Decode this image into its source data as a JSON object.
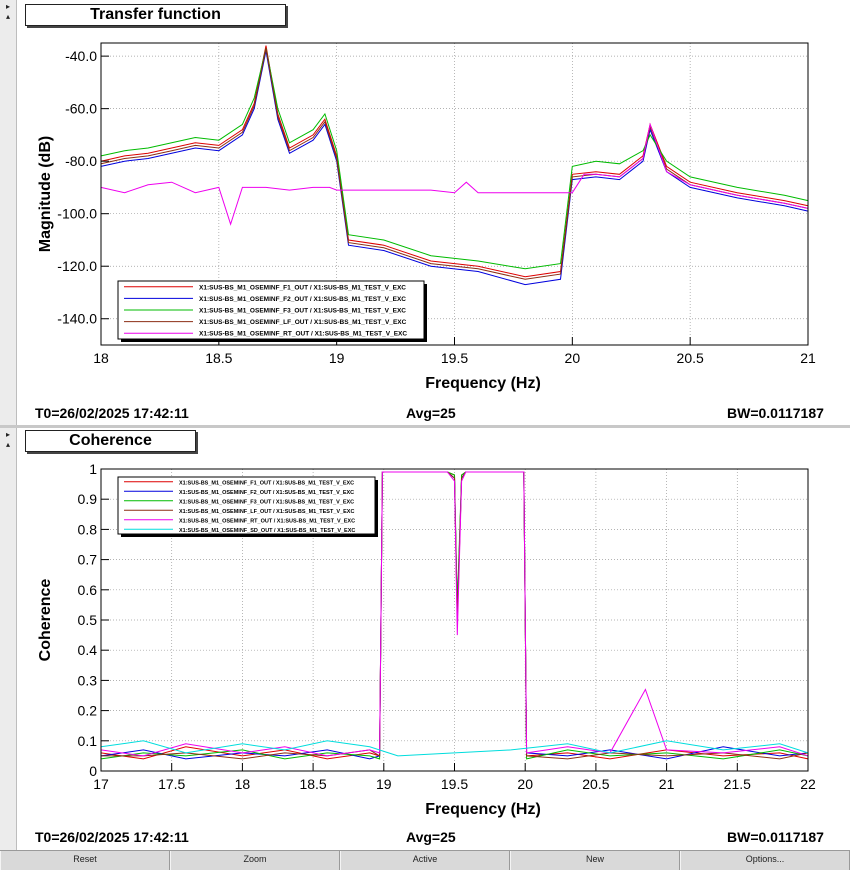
{
  "panes": [
    {
      "title": "Transfer function",
      "footer": {
        "t0": "T0=26/02/2025 17:42:11",
        "avg": "Avg=25",
        "bw": "BW=0.0117187"
      }
    },
    {
      "title": "Coherence",
      "footer": {
        "t0": "T0=26/02/2025 17:42:11",
        "avg": "Avg=25",
        "bw": "BW=0.0117187"
      }
    }
  ],
  "toolbar": {
    "reset": "Reset",
    "zoom": "Zoom",
    "active": "Active",
    "new": "New",
    "options": "Options..."
  },
  "chart_data": [
    {
      "type": "line",
      "xlabel": "Frequency (Hz)",
      "ylabel": "Magnitude (dB)",
      "xlim": [
        18,
        21
      ],
      "ylim": [
        -150,
        -35
      ],
      "xticks": [
        18,
        18.5,
        19,
        19.5,
        20,
        20.5,
        21
      ],
      "yticks": [
        -140,
        -120,
        -100,
        -80,
        -60,
        -40
      ],
      "grid": true,
      "legend_position": "bottom-left",
      "series": [
        {
          "name": "X1:SUS-BS_M1_OSEMINF_F1_OUT / X1:SUS-BS_M1_TEST_V_EXC",
          "color": "#dd0000",
          "x": [
            18,
            18.1,
            18.2,
            18.3,
            18.4,
            18.5,
            18.6,
            18.65,
            18.7,
            18.75,
            18.8,
            18.9,
            18.95,
            19.0,
            19.05,
            19.2,
            19.4,
            19.6,
            19.8,
            19.95,
            20.0,
            20.1,
            20.2,
            20.3,
            20.33,
            20.4,
            20.5,
            20.7,
            20.9,
            21.0
          ],
          "y": [
            -80,
            -78,
            -77,
            -75,
            -73,
            -74,
            -68,
            -58,
            -36,
            -62,
            -75,
            -70,
            -64,
            -78,
            -110,
            -112,
            -118,
            -120,
            -124,
            -122,
            -85,
            -84,
            -85,
            -78,
            -66,
            -82,
            -88,
            -92,
            -95,
            -97
          ]
        },
        {
          "name": "X1:SUS-BS_M1_OSEMINF_F2_OUT / X1:SUS-BS_M1_TEST_V_EXC",
          "color": "#0000dd",
          "x": [
            18,
            18.1,
            18.2,
            18.3,
            18.4,
            18.5,
            18.6,
            18.65,
            18.7,
            18.75,
            18.8,
            18.9,
            18.95,
            19.0,
            19.05,
            19.2,
            19.4,
            19.6,
            19.8,
            19.95,
            20.0,
            20.1,
            20.2,
            20.3,
            20.33,
            20.4,
            20.5,
            20.7,
            20.9,
            21.0
          ],
          "y": [
            -82,
            -80,
            -79,
            -77,
            -75,
            -76,
            -70,
            -60,
            -38,
            -64,
            -77,
            -72,
            -66,
            -80,
            -112,
            -114,
            -120,
            -122,
            -127,
            -125,
            -87,
            -86,
            -87,
            -80,
            -68,
            -84,
            -90,
            -94,
            -97,
            -99
          ]
        },
        {
          "name": "X1:SUS-BS_M1_OSEMINF_F3_OUT / X1:SUS-BS_M1_TEST_V_EXC",
          "color": "#00bb00",
          "x": [
            18,
            18.1,
            18.2,
            18.3,
            18.4,
            18.5,
            18.6,
            18.65,
            18.7,
            18.75,
            18.8,
            18.9,
            18.95,
            19.0,
            19.05,
            19.2,
            19.4,
            19.6,
            19.8,
            19.95,
            20.0,
            20.1,
            20.2,
            20.3,
            20.33,
            20.4,
            20.5,
            20.7,
            20.9,
            21.0
          ],
          "y": [
            -78,
            -76,
            -75,
            -73,
            -71,
            -72,
            -66,
            -56,
            -37,
            -60,
            -73,
            -68,
            -62,
            -76,
            -108,
            -110,
            -116,
            -118,
            -121,
            -119,
            -82,
            -80,
            -81,
            -76,
            -70,
            -80,
            -86,
            -90,
            -93,
            -95
          ]
        },
        {
          "name": "X1:SUS-BS_M1_OSEMINF_LF_OUT / X1:SUS-BS_M1_TEST_V_EXC",
          "color": "#8b2e14",
          "x": [
            18,
            18.1,
            18.2,
            18.3,
            18.4,
            18.5,
            18.6,
            18.65,
            18.7,
            18.75,
            18.8,
            18.9,
            18.95,
            19.0,
            19.05,
            19.2,
            19.4,
            19.6,
            19.8,
            19.95,
            20.0,
            20.1,
            20.2,
            20.3,
            20.33,
            20.4,
            20.5,
            20.7,
            20.9,
            21.0
          ],
          "y": [
            -81,
            -79,
            -78,
            -76,
            -74,
            -75,
            -69,
            -59,
            -37,
            -63,
            -76,
            -71,
            -65,
            -79,
            -111,
            -113,
            -119,
            -121,
            -125,
            -123,
            -86,
            -85,
            -86,
            -79,
            -67,
            -83,
            -89,
            -93,
            -96,
            -98
          ]
        },
        {
          "name": "X1:SUS-BS_M1_OSEMINF_RT_OUT / X1:SUS-BS_M1_TEST_V_EXC",
          "color": "#ee00ee",
          "x": [
            18,
            18.1,
            18.2,
            18.3,
            18.4,
            18.5,
            18.55,
            18.6,
            18.7,
            18.8,
            18.9,
            18.97,
            19.0,
            19.2,
            19.4,
            19.5,
            19.55,
            19.6,
            19.8,
            20.0,
            20.05,
            20.1,
            20.2,
            20.3,
            20.33,
            20.4,
            20.5,
            20.7,
            20.9,
            21.0
          ],
          "y": [
            -90,
            -92,
            -89,
            -88,
            -92,
            -90,
            -104,
            -90,
            -90,
            -91,
            -90,
            -90,
            -91,
            -91,
            -91,
            -92,
            -88,
            -92,
            -92,
            -92,
            -85,
            -85,
            -86,
            -79,
            -66,
            -84,
            -89,
            -93,
            -96,
            -98
          ]
        }
      ]
    },
    {
      "type": "line",
      "xlabel": "Frequency (Hz)",
      "ylabel": "Coherence",
      "xlim": [
        17,
        22
      ],
      "ylim": [
        0,
        1
      ],
      "xticks": [
        17,
        17.5,
        18,
        18.5,
        19,
        19.5,
        20,
        20.5,
        21,
        21.5,
        22
      ],
      "yticks": [
        0,
        0.1,
        0.2,
        0.3,
        0.4,
        0.5,
        0.6,
        0.7,
        0.8,
        0.9,
        1
      ],
      "grid": true,
      "legend_position": "top-left",
      "series": [
        {
          "name": "X1:SUS-BS_M1_OSEMINF_F1_OUT / X1:SUS-BS_M1_TEST_V_EXC",
          "color": "#dd0000",
          "x": [
            17,
            17.3,
            17.6,
            18,
            18.3,
            18.6,
            18.9,
            18.97,
            18.99,
            19.2,
            19.45,
            19.5,
            19.52,
            19.55,
            19.58,
            19.8,
            19.99,
            20.01,
            20.3,
            20.6,
            21,
            21.4,
            21.8,
            22
          ],
          "y": [
            0.06,
            0.04,
            0.08,
            0.05,
            0.07,
            0.04,
            0.06,
            0.05,
            0.99,
            0.99,
            0.99,
            0.98,
            0.5,
            0.98,
            0.99,
            0.99,
            0.99,
            0.05,
            0.06,
            0.04,
            0.07,
            0.05,
            0.06,
            0.04
          ]
        },
        {
          "name": "X1:SUS-BS_M1_OSEMINF_F2_OUT / X1:SUS-BS_M1_TEST_V_EXC",
          "color": "#0000dd",
          "x": [
            17,
            17.3,
            17.6,
            18,
            18.3,
            18.6,
            18.9,
            18.97,
            18.99,
            19.2,
            19.45,
            19.5,
            19.52,
            19.55,
            19.58,
            19.8,
            19.99,
            20.01,
            20.3,
            20.6,
            21,
            21.4,
            21.8,
            22
          ],
          "y": [
            0.05,
            0.07,
            0.04,
            0.06,
            0.05,
            0.07,
            0.04,
            0.05,
            0.99,
            0.99,
            0.99,
            0.97,
            0.52,
            0.97,
            0.99,
            0.99,
            0.99,
            0.06,
            0.05,
            0.07,
            0.04,
            0.08,
            0.05,
            0.06
          ]
        },
        {
          "name": "X1:SUS-BS_M1_OSEMINF_F3_OUT / X1:SUS-BS_M1_TEST_V_EXC",
          "color": "#00bb00",
          "x": [
            17,
            17.3,
            17.6,
            18,
            18.3,
            18.6,
            18.9,
            18.97,
            18.99,
            19.2,
            19.45,
            19.5,
            19.52,
            19.55,
            19.58,
            19.8,
            19.99,
            20.01,
            20.3,
            20.6,
            21,
            21.4,
            21.8,
            22
          ],
          "y": [
            0.04,
            0.06,
            0.05,
            0.07,
            0.04,
            0.06,
            0.05,
            0.04,
            0.99,
            0.99,
            0.99,
            0.98,
            0.55,
            0.98,
            0.99,
            0.99,
            0.99,
            0.04,
            0.07,
            0.05,
            0.06,
            0.04,
            0.07,
            0.05
          ]
        },
        {
          "name": "X1:SUS-BS_M1_OSEMINF_LF_OUT / X1:SUS-BS_M1_TEST_V_EXC",
          "color": "#8b2e14",
          "x": [
            17,
            17.3,
            17.6,
            18,
            18.3,
            18.6,
            18.9,
            18.97,
            18.99,
            19.2,
            19.45,
            19.5,
            19.52,
            19.55,
            19.58,
            19.8,
            19.99,
            20.01,
            20.3,
            20.6,
            21,
            21.4,
            21.8,
            22
          ],
          "y": [
            0.05,
            0.05,
            0.06,
            0.04,
            0.06,
            0.05,
            0.07,
            0.05,
            0.99,
            0.99,
            0.99,
            0.97,
            0.5,
            0.97,
            0.99,
            0.99,
            0.99,
            0.05,
            0.04,
            0.06,
            0.05,
            0.06,
            0.04,
            0.06
          ]
        },
        {
          "name": "X1:SUS-BS_M1_OSEMINF_RT_OUT / X1:SUS-BS_M1_TEST_V_EXC",
          "color": "#ee00ee",
          "x": [
            17,
            17.3,
            17.6,
            18,
            18.3,
            18.6,
            18.9,
            18.97,
            18.99,
            19.2,
            19.45,
            19.5,
            19.52,
            19.55,
            19.58,
            19.8,
            19.99,
            20.01,
            20.3,
            20.6,
            20.85,
            21,
            21.4,
            21.8,
            22
          ],
          "y": [
            0.07,
            0.05,
            0.09,
            0.06,
            0.08,
            0.05,
            0.07,
            0.06,
            0.99,
            0.99,
            0.99,
            0.96,
            0.45,
            0.96,
            0.99,
            0.99,
            0.99,
            0.06,
            0.08,
            0.06,
            0.27,
            0.07,
            0.06,
            0.08,
            0.05
          ]
        },
        {
          "name": "X1:SUS-BS_M1_OSEMINF_SD_OUT / X1:SUS-BS_M1_TEST_V_EXC",
          "color": "#00dddd",
          "x": [
            17,
            17.3,
            17.6,
            18,
            18.3,
            18.6,
            18.9,
            19.1,
            19.5,
            19.9,
            20.3,
            20.6,
            21,
            21.4,
            21.8,
            22
          ],
          "y": [
            0.08,
            0.1,
            0.06,
            0.09,
            0.07,
            0.1,
            0.08,
            0.05,
            0.06,
            0.07,
            0.09,
            0.06,
            0.1,
            0.07,
            0.09,
            0.06
          ]
        }
      ]
    }
  ]
}
